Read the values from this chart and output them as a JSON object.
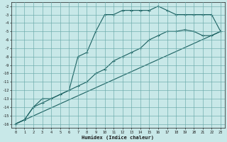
{
  "xlabel": "Humidex (Indice chaleur)",
  "background_color": "#c8e8e8",
  "grid_color": "#6aaaaa",
  "line_color": "#1a6060",
  "xlim": [
    -0.5,
    23.5
  ],
  "ylim": [
    -16.5,
    -1.5
  ],
  "xticks": [
    0,
    1,
    2,
    3,
    4,
    5,
    6,
    7,
    8,
    9,
    10,
    11,
    12,
    13,
    14,
    15,
    16,
    17,
    18,
    19,
    20,
    21,
    22,
    23
  ],
  "yticks": [
    -2,
    -3,
    -4,
    -5,
    -6,
    -7,
    -8,
    -9,
    -10,
    -11,
    -12,
    -13,
    -14,
    -15,
    -16
  ],
  "line1_x": [
    0,
    1,
    2,
    3,
    4,
    5,
    6,
    7,
    8,
    9,
    10,
    11,
    12,
    13,
    14,
    15,
    16,
    17,
    18,
    19,
    20,
    21,
    22,
    23
  ],
  "line1_y": [
    -16,
    -15.5,
    -14,
    -13,
    -13,
    -12.5,
    -12,
    -8,
    -7.5,
    -5,
    -3,
    -3,
    -2.5,
    -2.5,
    -2.5,
    -2.5,
    -2,
    -2.5,
    -3,
    -3,
    -3,
    -3,
    -3,
    -5
  ],
  "line2_x": [
    0,
    1,
    2,
    3,
    4,
    5,
    6,
    7,
    8,
    9,
    10,
    11,
    12,
    13,
    14,
    15,
    16,
    17,
    18,
    19,
    20,
    21,
    22,
    23
  ],
  "line2_y": [
    -16,
    -15.5,
    -14,
    -13.5,
    -13,
    -12.5,
    -12,
    -11.5,
    -11,
    -10,
    -9.5,
    -8.5,
    -8,
    -7.5,
    -7,
    -6,
    -5.5,
    -5,
    -5,
    -4.8,
    -5,
    -5.5,
    -5.5,
    -5
  ],
  "line3_x": [
    0,
    23
  ],
  "line3_y": [
    -16,
    -5
  ]
}
